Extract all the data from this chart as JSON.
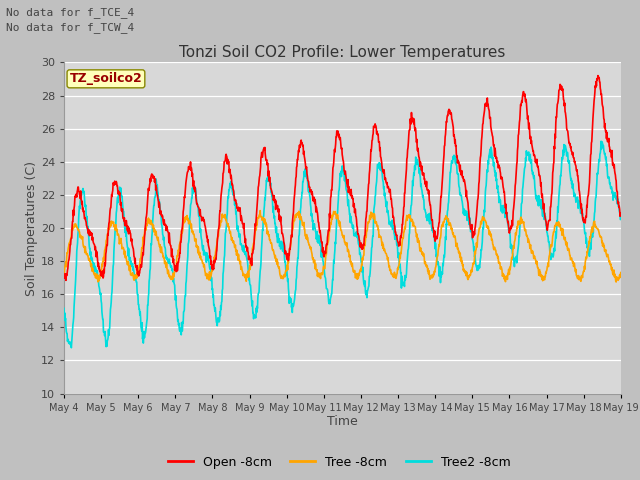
{
  "title": "Tonzi Soil CO2 Profile: Lower Temperatures",
  "xlabel": "Time",
  "ylabel": "Soil Temperatures (C)",
  "ylim": [
    10,
    30
  ],
  "fig_bg": "#bbbbbb",
  "plot_bg": "#d8d8d8",
  "annotation1": "No data for f_TCE_4",
  "annotation2": "No data for f_TCW_4",
  "legend_label": "TZ_soilco2",
  "series": {
    "open": {
      "label": "Open -8cm",
      "color": "#ff0000"
    },
    "tree": {
      "label": "Tree -8cm",
      "color": "#ffa500"
    },
    "tree2": {
      "label": "Tree2 -8cm",
      "color": "#00dddd"
    }
  },
  "xtick_labels": [
    "May 4",
    "May 5",
    "May 6",
    "May 7",
    "May 8",
    "May 9",
    "May 10",
    "May 11",
    "May 12",
    "May 13",
    "May 14",
    "May 15",
    "May 16",
    "May 17",
    "May 18",
    "May 19"
  ],
  "ytick_labels": [
    10,
    12,
    14,
    16,
    18,
    20,
    22,
    24,
    26,
    28,
    30
  ]
}
